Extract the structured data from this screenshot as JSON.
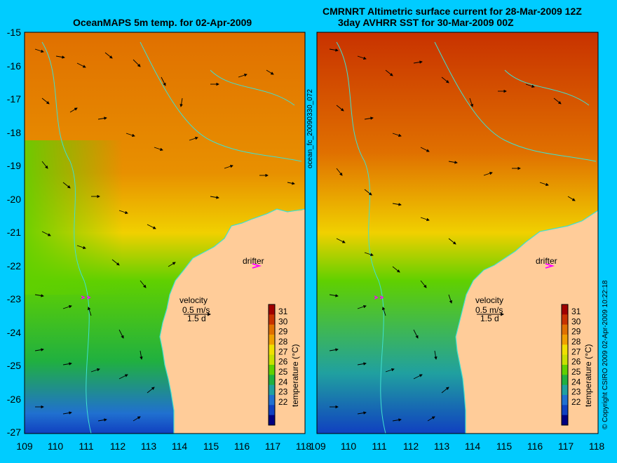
{
  "left_panel": {
    "title": "OceanMAPS 5m temp. for 02-Apr-2009",
    "legend_label": "temperature (°C)",
    "side_label": "ocean_fc_20090330_072"
  },
  "right_panel": {
    "title_line1": "CMRNRT Altimetric surface current for 28-Mar-2009 12Z",
    "title_line2": "3day AVHRR SST for 30-Mar-2009 00Z",
    "legend_label": "temperature (°C)",
    "side_label": "© Copyright CSIRO 2009   02-Apr-2009 10:22:18"
  },
  "annotations": {
    "drifter": "drifter",
    "velocity": "velocity",
    "speed": "0.5 m/s",
    "duration": "1.5 d"
  },
  "axes": {
    "lat_ticks": [
      "-15",
      "-16",
      "-17",
      "-18",
      "-19",
      "-20",
      "-21",
      "-22",
      "-23",
      "-24",
      "-25",
      "-26",
      "-27"
    ],
    "lon_ticks": [
      "109",
      "110",
      "111",
      "112",
      "113",
      "114",
      "115",
      "116",
      "117",
      "118"
    ]
  },
  "colorbar": {
    "ticks": [
      "31",
      "30",
      "29",
      "28",
      "27",
      "26",
      "25",
      "24",
      "23",
      "22"
    ],
    "colors": [
      "#a00000",
      "#c83200",
      "#e07000",
      "#f0a000",
      "#f0e000",
      "#c8e000",
      "#60d000",
      "#20b040",
      "#20a0a0",
      "#2070d0",
      "#1040c0",
      "#000080"
    ]
  },
  "colors": {
    "background": "#00ccff",
    "land": "#ffcc99",
    "coast": "#40e0d0",
    "drifter_marker": "#ff00ff"
  }
}
